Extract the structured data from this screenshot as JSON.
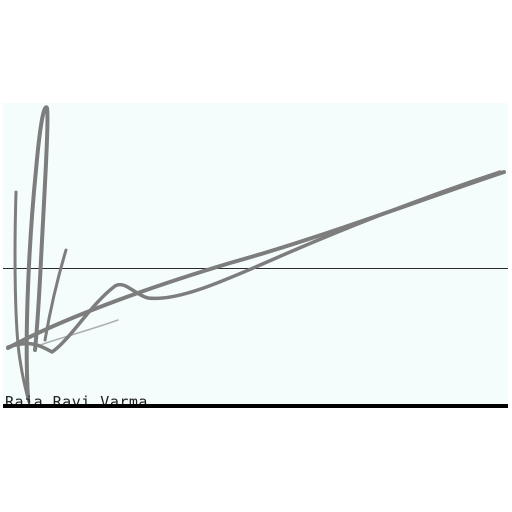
{
  "document": {
    "signer_name": "Raja Ravi Varma"
  },
  "colors": {
    "paper": "#f5fcfc",
    "ink": "#7d7d7d",
    "rule": "#000000"
  }
}
